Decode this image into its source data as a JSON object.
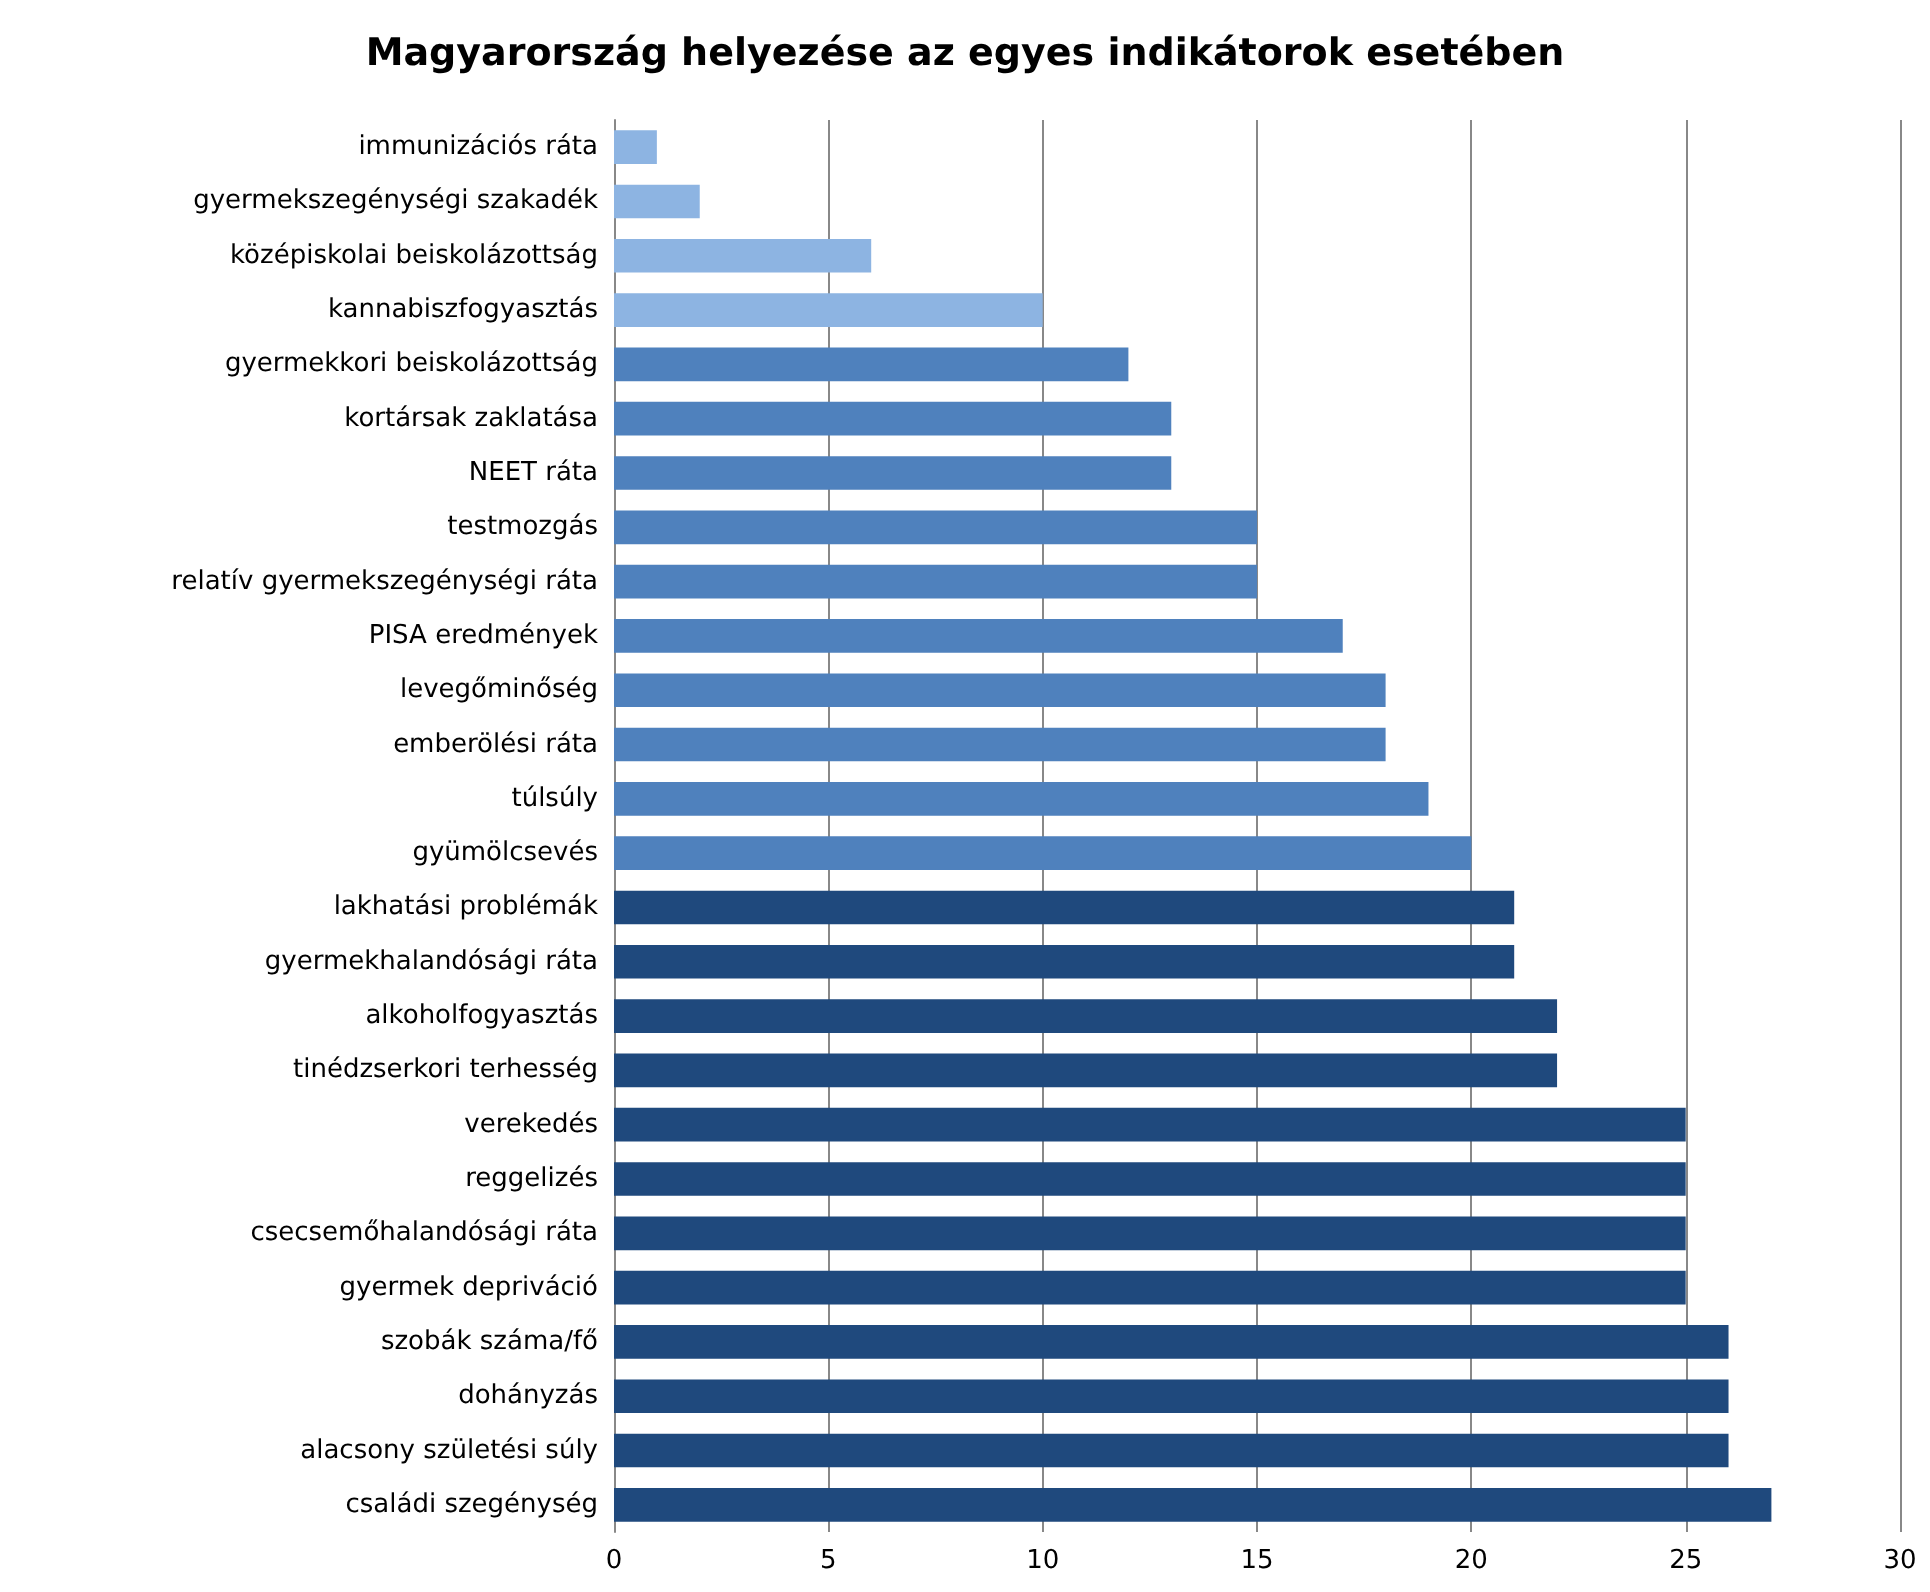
{
  "chart_data": {
    "type": "bar",
    "orientation": "horizontal",
    "title": "Magyarország helyezése az egyes indikátorok esetében",
    "categories": [
      "immunizációs ráta",
      "gyermekszegénységi szakadék",
      "középiskolai beiskolázottság",
      "kannabiszfogyasztás",
      "gyermekkori beiskolázottság",
      "kortársak zaklatása",
      "NEET ráta",
      "testmozgás",
      "relatív gyermekszegénységi ráta",
      "PISA eredmények",
      "levegőminőség",
      "emberölési ráta",
      "túlsúly",
      "gyümölcsevés",
      "lakhatási problémák",
      "gyermekhalandósági ráta",
      "alkoholfogyasztás",
      "tinédzserkori terhesség",
      "verekedés",
      "reggelizés",
      "csecsemőhalandósági ráta",
      "gyermek depriváció",
      "szobák száma/fő",
      "dohányzás",
      "alacsony születési súly",
      "családi szegénység"
    ],
    "values": [
      1,
      2,
      6,
      10,
      12,
      13,
      13,
      15,
      15,
      17,
      18,
      18,
      19,
      20,
      21,
      21,
      22,
      22,
      25,
      25,
      25,
      25,
      26,
      26,
      26,
      27
    ],
    "colors": [
      "#8db4e2",
      "#8db4e2",
      "#8db4e2",
      "#8db4e2",
      "#4f81bd",
      "#4f81bd",
      "#4f81bd",
      "#4f81bd",
      "#4f81bd",
      "#4f81bd",
      "#4f81bd",
      "#4f81bd",
      "#4f81bd",
      "#4f81bd",
      "#1f497d",
      "#1f497d",
      "#1f497d",
      "#1f497d",
      "#1f497d",
      "#1f497d",
      "#1f497d",
      "#1f497d",
      "#1f497d",
      "#1f497d",
      "#1f497d",
      "#1f497d"
    ],
    "xlim": [
      0,
      30
    ],
    "xticks": [
      0,
      5,
      10,
      15,
      20,
      25,
      30
    ],
    "grid": "x"
  }
}
